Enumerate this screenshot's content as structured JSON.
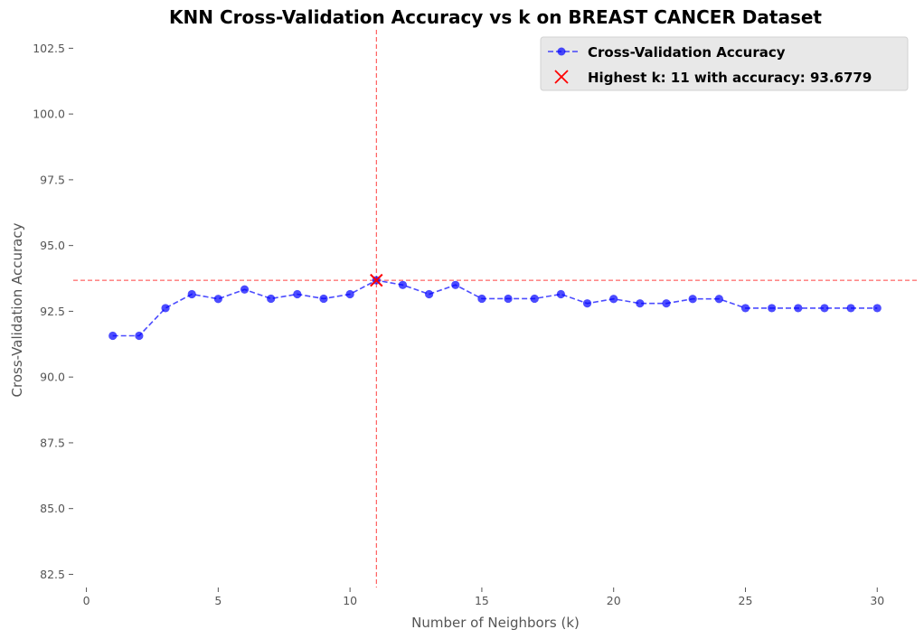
{
  "chart_data": {
    "type": "line",
    "title": "KNN Cross-Validation Accuracy vs k on BREAST CANCER Dataset",
    "xlabel": "Number of Neighbors (k)",
    "ylabel": "Cross-Validation Accuracy",
    "xlim": [
      -0.5,
      31.5
    ],
    "ylim": [
      82.0,
      103.2
    ],
    "xticks": [
      0,
      5,
      10,
      15,
      20,
      25,
      30
    ],
    "yticks": [
      82.5,
      85.0,
      87.5,
      90.0,
      92.5,
      95.0,
      97.5,
      100.0,
      102.5
    ],
    "xtick_labels": [
      "0",
      "5",
      "10",
      "15",
      "20",
      "25",
      "30"
    ],
    "ytick_labels": [
      "82.5",
      "85.0",
      "87.5",
      "90.0",
      "92.5",
      "95.0",
      "97.5",
      "100.0",
      "102.5"
    ],
    "grid": false,
    "legend_position": "top-right",
    "series": [
      {
        "name": "Cross-Validation Accuracy",
        "color": "#0000ff",
        "x": [
          1,
          2,
          3,
          4,
          5,
          6,
          7,
          8,
          9,
          10,
          11,
          12,
          13,
          14,
          15,
          16,
          17,
          18,
          19,
          20,
          21,
          22,
          23,
          24,
          25,
          26,
          27,
          28,
          29,
          30
        ],
        "y": [
          91.57,
          91.57,
          92.62,
          93.15,
          92.97,
          93.33,
          92.98,
          93.15,
          92.98,
          93.15,
          93.68,
          93.5,
          93.15,
          93.5,
          92.98,
          92.98,
          92.98,
          93.15,
          92.8,
          92.97,
          92.8,
          92.8,
          92.97,
          92.97,
          92.62,
          92.62,
          92.62,
          92.62,
          92.62,
          92.62
        ]
      }
    ],
    "highlight": {
      "label": "Highest k: 11 with accuracy: 93.6779",
      "x": 11,
      "y": 93.6779,
      "color": "#ff0000"
    }
  }
}
